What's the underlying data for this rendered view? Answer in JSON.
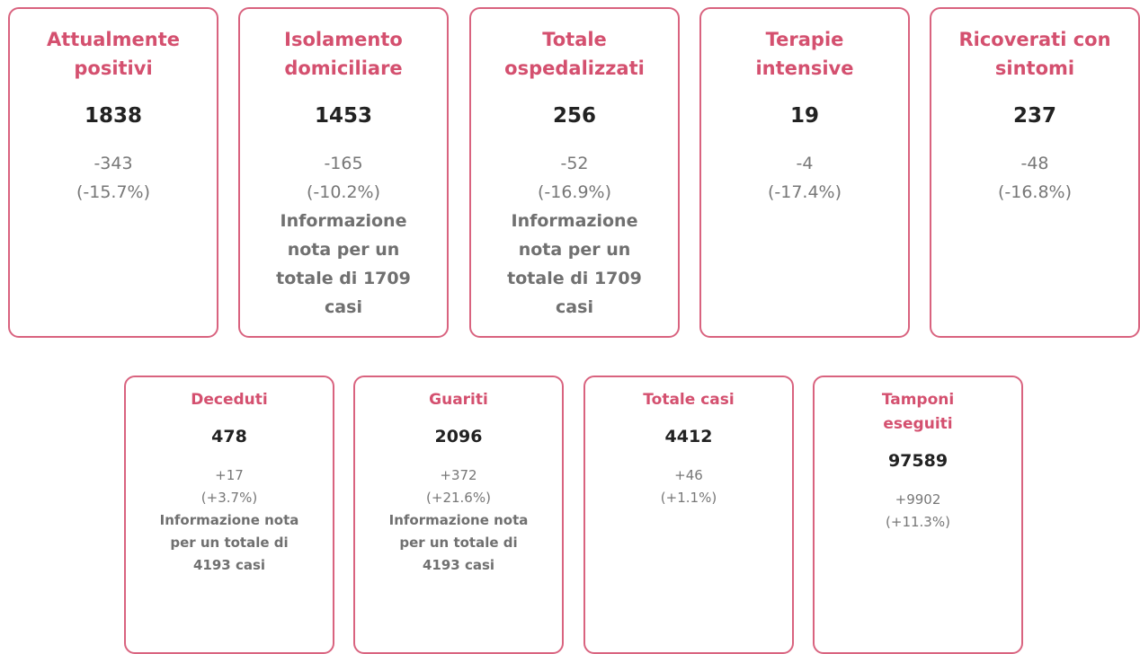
{
  "rows": [
    {
      "cards": [
        {
          "title": "Attualmente positivi",
          "value": 1838,
          "change": "-343",
          "percent": "(-15.7%)"
        },
        {
          "title": "Isolamento domiciliare",
          "value": 1453,
          "change": "-165",
          "percent": "(-10.2%)",
          "note": "Informazione nota per un totale di 1709 casi"
        },
        {
          "title": "Totale ospedalizzati",
          "value": 256,
          "change": "-52",
          "percent": "(-16.9%)",
          "note": "Informazione nota per un totale di 1709 casi"
        },
        {
          "title": "Terapie intensive",
          "value": 19,
          "change": "-4",
          "percent": "(-17.4%)"
        },
        {
          "title": "Ricoverati con sintomi",
          "value": 237,
          "change": "-48",
          "percent": "(-16.8%)"
        }
      ]
    },
    {
      "cards": [
        {
          "title": "Deceduti",
          "value": 478,
          "change": "+17",
          "percent": "(+3.7%)",
          "note": "Informazione nota per un totale di 4193 casi"
        },
        {
          "title": "Guariti",
          "value": 2096,
          "change": "+372",
          "percent": "(+21.6%)",
          "note": "Informazione nota per un totale di 4193 casi"
        },
        {
          "title": "Totale casi",
          "value": 4412,
          "change": "+46",
          "percent": "(+1.1%)"
        },
        {
          "title": "Tamponi eseguiti",
          "value": 97589,
          "change": "+9902",
          "percent": "(+11.3%)"
        }
      ]
    }
  ]
}
